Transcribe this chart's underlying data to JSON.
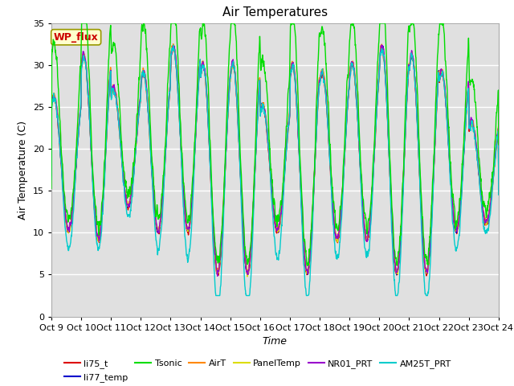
{
  "title": "Air Temperatures",
  "xlabel": "Time",
  "ylabel": "Air Temperature (C)",
  "ylim": [
    0,
    35
  ],
  "tick_labels": [
    "Oct 9",
    "Oct 10",
    "Oct 11",
    "Oct 12",
    "Oct 13",
    "Oct 14",
    "Oct 15",
    "Oct 16",
    "Oct 17",
    "Oct 18",
    "Oct 19",
    "Oct 20",
    "Oct 21",
    "Oct 22",
    "Oct 23",
    "Oct 24"
  ],
  "series": {
    "li75_t": {
      "color": "#dd0000"
    },
    "li77_temp": {
      "color": "#0000cc"
    },
    "Tsonic": {
      "color": "#00dd00"
    },
    "AirT": {
      "color": "#ff8800"
    },
    "PanelTemp": {
      "color": "#dddd00"
    },
    "NR01_PRT": {
      "color": "#9900cc"
    },
    "AM25T_PRT": {
      "color": "#00cccc"
    }
  },
  "annotation_text": "WP_flux",
  "annotation_color": "#cc0000",
  "annotation_bg": "#ffffcc",
  "annotation_border": "#999900",
  "plot_bg": "#e0e0e0",
  "title_fontsize": 11,
  "label_fontsize": 9,
  "day_peaks": [
    26,
    31,
    27,
    29,
    32,
    30,
    30,
    25,
    30,
    29,
    30,
    32,
    31,
    29,
    23
  ],
  "day_mins": [
    10,
    9,
    13,
    10,
    10,
    5,
    5,
    10,
    5,
    9,
    9,
    5,
    5,
    10,
    11
  ],
  "tsonic_extra": [
    5,
    6,
    4,
    5,
    4,
    4,
    5,
    4,
    5,
    4,
    4,
    5,
    4,
    5,
    4
  ],
  "am25t_extra": [
    2,
    1,
    1,
    2,
    3,
    4,
    4,
    3,
    3,
    2,
    2,
    3,
    3,
    2,
    1
  ]
}
